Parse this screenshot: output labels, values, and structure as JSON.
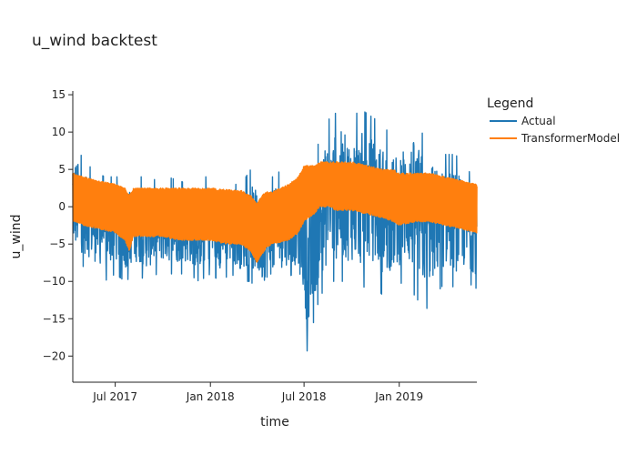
{
  "chart_data": {
    "type": "line",
    "title": "u_wind backtest",
    "xlabel": "time",
    "ylabel": "u_wind",
    "x_range": [
      "2017-04-10",
      "2019-05-31"
    ],
    "ylim": [
      -23.5,
      15.5
    ],
    "y_ticks": [
      15,
      10,
      5,
      0,
      -5,
      -10,
      -15,
      -20
    ],
    "y_tick_labels": [
      "15",
      "10",
      "5",
      "0",
      "−5",
      "−10",
      "−15",
      "−20"
    ],
    "x_ticks": [
      "2017-07-01",
      "2018-01-01",
      "2018-07-01",
      "2019-01-01"
    ],
    "x_tick_labels": [
      "Jul 2017",
      "Jan 2018",
      "Jul 2018",
      "Jan 2019"
    ],
    "grid": false,
    "legend": {
      "title": "Legend",
      "placement": "right"
    },
    "series": [
      {
        "name": "Actual",
        "color": "#1f77b4",
        "style": "oscillating band (min/max envelope)",
        "x": [
          "2017-04-10",
          "2017-04-20",
          "2017-05-01",
          "2017-05-20",
          "2017-06-10",
          "2017-07-01",
          "2017-07-20",
          "2017-08-10",
          "2017-09-01",
          "2017-09-20",
          "2017-10-10",
          "2017-11-01",
          "2017-11-20",
          "2017-12-10",
          "2018-01-01",
          "2018-01-20",
          "2018-02-10",
          "2018-03-01",
          "2018-03-20",
          "2018-04-10",
          "2018-05-01",
          "2018-05-20",
          "2018-06-10",
          "2018-06-25",
          "2018-07-01",
          "2018-07-10",
          "2018-07-20",
          "2018-08-01",
          "2018-08-20",
          "2018-09-10",
          "2018-10-01",
          "2018-10-20",
          "2018-11-10",
          "2018-12-01",
          "2018-12-20",
          "2019-01-10",
          "2019-02-01",
          "2019-02-20",
          "2019-03-10",
          "2019-04-01",
          "2019-04-20",
          "2019-05-10",
          "2019-05-31"
        ],
        "max": [
          10,
          8,
          6,
          5,
          4,
          4,
          4,
          4,
          4,
          3.5,
          4,
          3.5,
          3,
          4,
          4,
          4,
          3,
          3,
          5,
          3,
          4,
          5,
          4,
          7,
          5,
          4,
          7,
          9,
          12,
          13,
          12,
          13,
          12,
          11,
          9,
          11,
          12,
          9,
          8,
          7,
          7,
          5,
          4
        ],
        "min": [
          -8,
          -8,
          -8,
          -9,
          -10,
          -9,
          -10,
          -9,
          -10,
          -9,
          -9,
          -9,
          -9,
          -10,
          -9,
          -10,
          -9,
          -10,
          -10,
          -12,
          -11,
          -10,
          -9,
          -12,
          -14,
          -22,
          -15,
          -12,
          -10,
          -10,
          -10,
          -11,
          -10,
          -12,
          -11,
          -10,
          -12,
          -14,
          -12,
          -10,
          -11,
          -10,
          -11
        ]
      },
      {
        "name": "TransformerModel",
        "color": "#ff7f0e",
        "style": "oscillating band (min/max envelope)",
        "x": [
          "2017-04-10",
          "2017-05-01",
          "2017-06-01",
          "2017-07-01",
          "2017-07-20",
          "2017-07-28",
          "2017-08-05",
          "2017-09-01",
          "2017-10-01",
          "2017-11-01",
          "2017-12-01",
          "2018-01-01",
          "2018-02-01",
          "2018-03-01",
          "2018-03-20",
          "2018-04-01",
          "2018-04-10",
          "2018-04-20",
          "2018-05-01",
          "2018-06-01",
          "2018-06-20",
          "2018-07-01",
          "2018-07-20",
          "2018-08-01",
          "2018-08-20",
          "2018-09-01",
          "2018-10-01",
          "2018-11-01",
          "2018-12-01",
          "2018-12-20",
          "2019-01-01",
          "2019-02-01",
          "2019-03-01",
          "2019-04-01",
          "2019-05-01",
          "2019-05-31"
        ],
        "max": [
          4.5,
          4,
          3.5,
          3,
          2.5,
          1.5,
          2.5,
          2.5,
          2.5,
          2.5,
          2.5,
          2.5,
          2.3,
          2.2,
          1.5,
          0.5,
          1.5,
          2,
          2,
          3,
          4,
          5.5,
          5.5,
          6,
          6,
          6,
          6,
          5.5,
          5,
          5,
          4.5,
          4.5,
          4.5,
          4,
          3.5,
          3
        ],
        "min": [
          -2,
          -2.5,
          -3,
          -3.5,
          -4.5,
          -6,
          -4,
          -4,
          -4,
          -4.5,
          -4.5,
          -4.5,
          -5,
          -5,
          -6,
          -7.5,
          -6.5,
          -5.5,
          -5,
          -4.5,
          -3.5,
          -2,
          -1,
          0,
          0,
          -0.5,
          -0.5,
          -1,
          -1.5,
          -2,
          -2.5,
          -2,
          -2,
          -2.5,
          -3,
          -3.5
        ]
      }
    ]
  }
}
